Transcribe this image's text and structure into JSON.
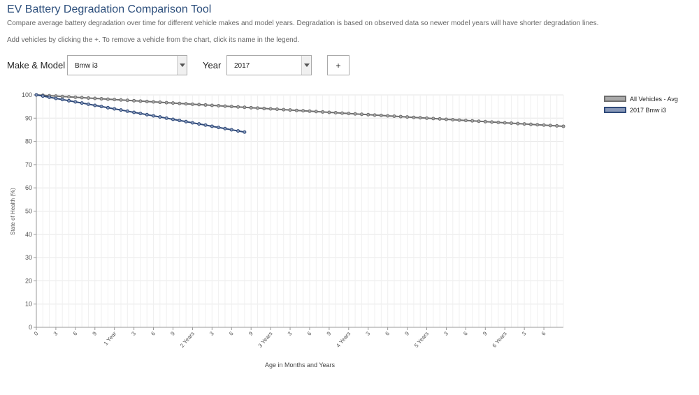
{
  "page": {
    "title": "EV Battery Degradation Comparison Tool",
    "description": "Compare average battery degradation over time for different vehicle makes and model years. Degradation is based on observed data so newer model years will have shorter degradation lines.",
    "hint": "Add vehicles by clicking the +. To remove a vehicle from the chart, click its name in the legend."
  },
  "controls": {
    "make_model_label": "Make & Model",
    "make_model_value": "Bmw i3",
    "year_label": "Year",
    "year_value": "2017",
    "add_label": "+",
    "arrow_icon": "chevron-down-icon"
  },
  "chart_data": {
    "type": "line",
    "title": "",
    "xlabel": "Age in Months and Years",
    "ylabel": "State of Health (%)",
    "ylim": [
      0,
      100
    ],
    "yticks": [
      0,
      10,
      20,
      30,
      40,
      50,
      60,
      70,
      80,
      90,
      100
    ],
    "xlim": [
      0,
      81
    ],
    "x_unit": "months",
    "xtick_months": [
      0,
      3,
      6,
      9,
      12,
      15,
      18,
      21,
      24,
      27,
      30,
      33,
      36,
      39,
      42,
      45,
      48,
      51,
      54,
      57,
      60,
      63,
      66,
      69,
      72,
      75,
      78
    ],
    "xtick_labels": [
      "0",
      "3",
      "6",
      "9",
      "1 Year",
      "3",
      "6",
      "9",
      "2 Years",
      "3",
      "6",
      "9",
      "3 Years",
      "3",
      "6",
      "9",
      "4 Years",
      "3",
      "6",
      "9",
      "5 Years",
      "3",
      "6",
      "9",
      "6 Years",
      "3",
      "6"
    ],
    "grid": true,
    "legend": "right",
    "series": [
      {
        "name": "All Vehicles - Avg",
        "line_color": "#6e6e6e",
        "fill_color": "#a9a9a9",
        "months": [
          0,
          81
        ],
        "values": [
          100.0,
          86.5
        ]
      },
      {
        "name": "2017 Bmw i3",
        "line_color": "#2f4a7a",
        "fill_color": "#8898b8",
        "months": [
          0,
          9,
          18,
          27,
          32
        ],
        "values": [
          100.0,
          95.5,
          91.0,
          86.5,
          84.0
        ]
      }
    ]
  }
}
